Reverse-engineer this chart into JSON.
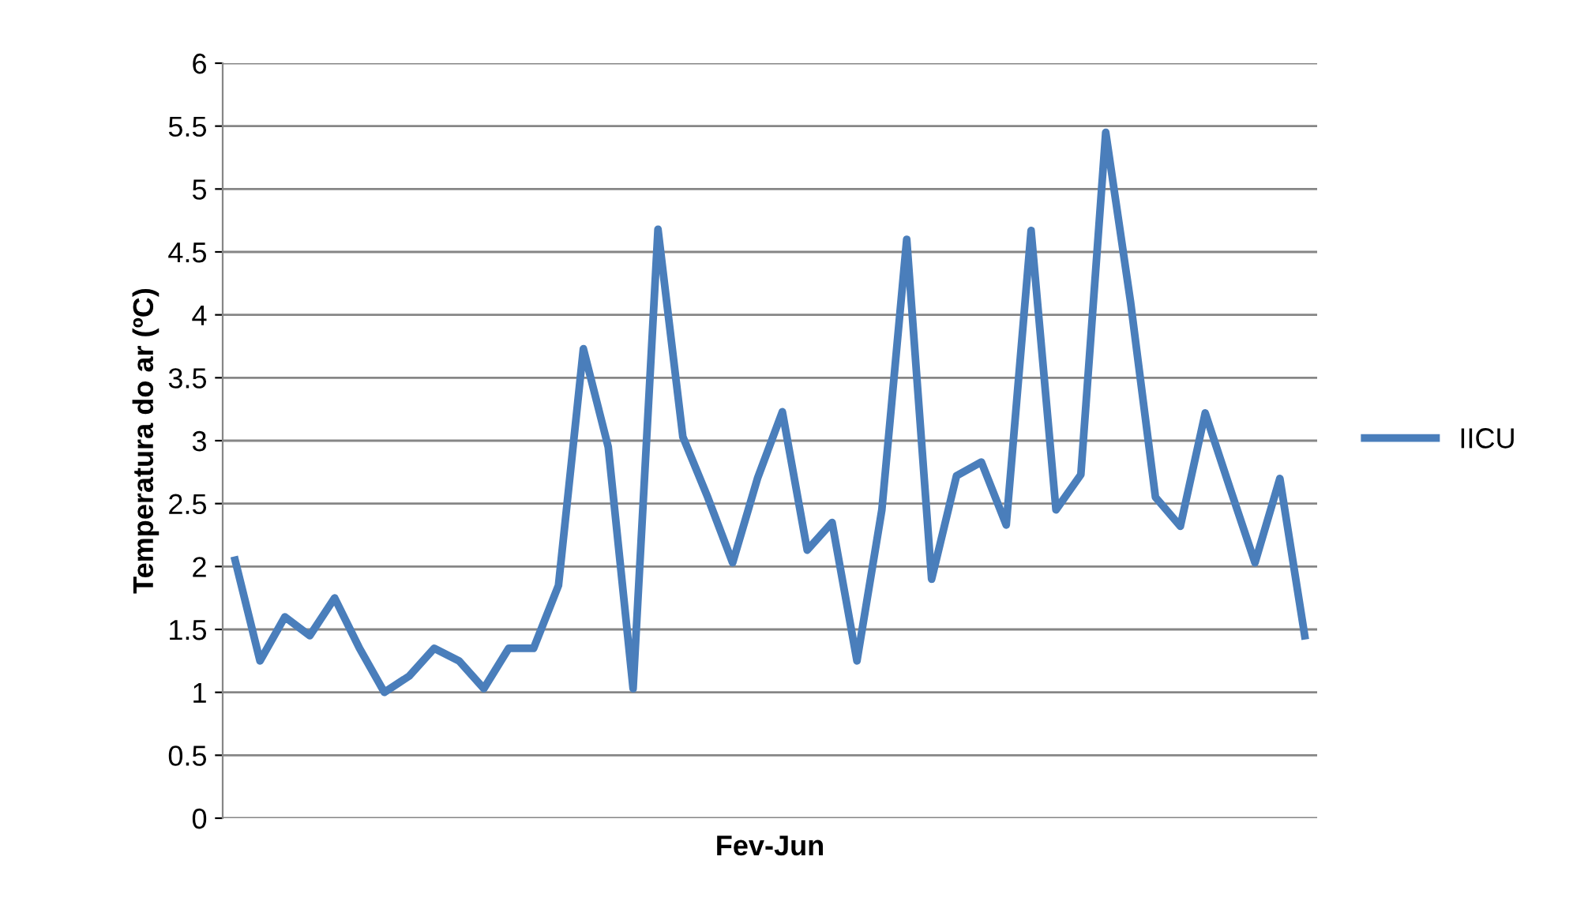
{
  "chart_data": {
    "type": "line",
    "xlabel": "Fev-Jun",
    "ylabel": "Temperatura do ar (ºC)",
    "categories": [
      null,
      null,
      null,
      null,
      null,
      null,
      null,
      null,
      null,
      null,
      null,
      null,
      null,
      null,
      null,
      null,
      null,
      null,
      null,
      null,
      null,
      null,
      null,
      null,
      null,
      null,
      null,
      null,
      null,
      null,
      null,
      null,
      null,
      null,
      null,
      null,
      null,
      null,
      null,
      null,
      null,
      null,
      null,
      null
    ],
    "series": [
      {
        "name": "IICU",
        "color": "#4a7ebb",
        "values": [
          2.05,
          1.25,
          1.6,
          1.45,
          1.75,
          1.35,
          1.0,
          1.13,
          1.35,
          1.25,
          1.03,
          1.35,
          1.35,
          1.85,
          3.73,
          2.95,
          1.03,
          4.68,
          3.03,
          2.55,
          2.03,
          2.7,
          3.23,
          2.13,
          2.35,
          1.25,
          2.45,
          4.6,
          1.9,
          2.72,
          2.83,
          2.33,
          4.67,
          2.45,
          2.73,
          5.45,
          4.1,
          2.55,
          2.32,
          3.22,
          2.62,
          2.03,
          2.7,
          1.45
        ]
      }
    ],
    "ylim": [
      0,
      6
    ],
    "yticks": [
      0,
      0.5,
      1,
      1.5,
      2,
      2.5,
      3,
      3.5,
      4,
      4.5,
      5,
      5.5,
      6
    ],
    "grid": "y",
    "legend": "right",
    "marker": "none",
    "line_style": "solid"
  }
}
